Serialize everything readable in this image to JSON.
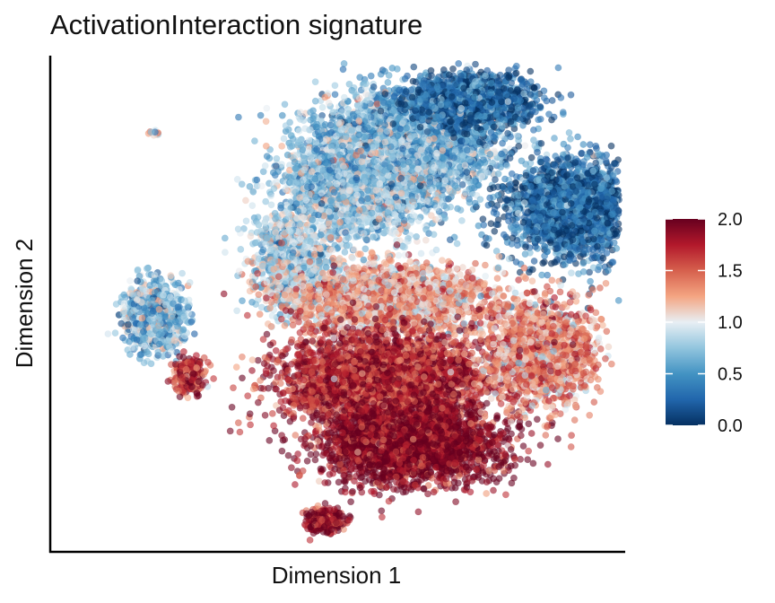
{
  "chart_data": {
    "type": "scatter",
    "title": "ActivationInteraction signature",
    "xlabel": "Dimension 1",
    "ylabel": "Dimension 2",
    "x_ticks_shown": false,
    "y_ticks_shown": false,
    "grid": false,
    "point_alpha": 0.6,
    "colorbar": {
      "placement": "right",
      "min": 0.0,
      "max": 2.0,
      "ticks": [
        "0.0",
        "0.5",
        "1.0",
        "1.5",
        "2.0"
      ],
      "colors": [
        "#053061",
        "#2166ac",
        "#4393c3",
        "#92c5de",
        "#e8eff4",
        "#f4a582",
        "#d6604d",
        "#b2182b",
        "#67001f"
      ]
    },
    "clusters": [
      {
        "x": 6.3,
        "y": 7.5,
        "sx": 1.4,
        "sy": 0.9,
        "value": 0.6,
        "weight": 11
      },
      {
        "x": 5.4,
        "y": 6.8,
        "sx": 1.2,
        "sy": 1.0,
        "value": 0.75,
        "weight": 9
      },
      {
        "x": 7.4,
        "y": 8.3,
        "sx": 1.0,
        "sy": 0.45,
        "value": 0.25,
        "weight": 5
      },
      {
        "x": 9.2,
        "y": 6.3,
        "sx": 1.1,
        "sy": 0.85,
        "value": 0.25,
        "weight": 8
      },
      {
        "x": 4.2,
        "y": 5.3,
        "sx": 0.6,
        "sy": 0.8,
        "value": 0.85,
        "weight": 4
      },
      {
        "x": 6.0,
        "y": 4.6,
        "sx": 1.5,
        "sy": 0.55,
        "value": 1.25,
        "weight": 9
      },
      {
        "x": 5.8,
        "y": 3.1,
        "sx": 1.6,
        "sy": 0.8,
        "value": 1.75,
        "weight": 12
      },
      {
        "x": 6.3,
        "y": 1.9,
        "sx": 1.4,
        "sy": 0.65,
        "value": 1.95,
        "weight": 10
      },
      {
        "x": 8.6,
        "y": 3.6,
        "sx": 0.9,
        "sy": 0.9,
        "value": 1.35,
        "weight": 6
      },
      {
        "x": 1.8,
        "y": 4.3,
        "sx": 0.45,
        "sy": 0.55,
        "value": 0.7,
        "weight": 4
      },
      {
        "x": 2.4,
        "y": 3.2,
        "sx": 0.25,
        "sy": 0.3,
        "value": 1.7,
        "weight": 1
      },
      {
        "x": 4.8,
        "y": 0.5,
        "sx": 0.3,
        "sy": 0.2,
        "value": 1.85,
        "weight": 1
      },
      {
        "x": 1.8,
        "y": 7.7,
        "sx": 0.08,
        "sy": 0.05,
        "value": 1.1,
        "weight": 0.05
      }
    ],
    "xlim": [
      0,
      10
    ],
    "ylim": [
      0,
      9
    ]
  }
}
